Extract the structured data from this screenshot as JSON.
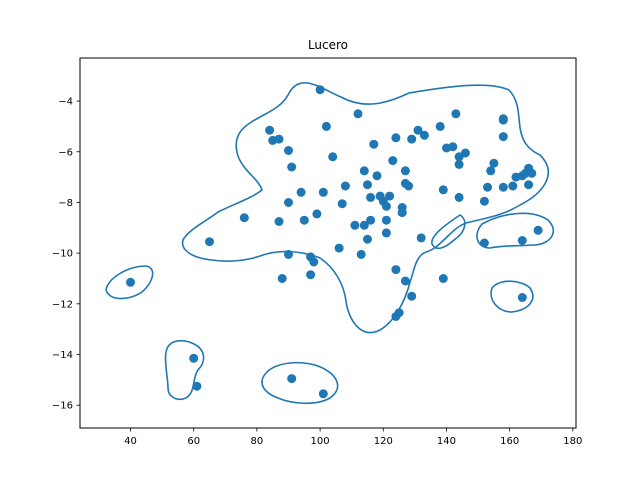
{
  "chart_data": {
    "type": "scatter",
    "title": "Lucero",
    "xlabel": "",
    "ylabel": "",
    "xlim": [
      24,
      181
    ],
    "ylim": [
      -16.9,
      -2.3
    ],
    "xticks": [
      40,
      60,
      80,
      100,
      120,
      140,
      160,
      180
    ],
    "yticks": [
      -16,
      -14,
      -12,
      -10,
      -8,
      -6,
      -4
    ],
    "grid": false,
    "colors": {
      "points": "#1f77b4",
      "contour": "#1f77b4"
    },
    "points": [
      [
        40,
        -11.15
      ],
      [
        60,
        -14.15
      ],
      [
        61,
        -15.25
      ],
      [
        65,
        -9.55
      ],
      [
        76,
        -8.6
      ],
      [
        84,
        -5.15
      ],
      [
        85,
        -5.55
      ],
      [
        87,
        -5.5
      ],
      [
        87,
        -8.75
      ],
      [
        88,
        -11.0
      ],
      [
        90,
        -5.95
      ],
      [
        90,
        -8.0
      ],
      [
        90,
        -10.05
      ],
      [
        91,
        -6.6
      ],
      [
        91,
        -14.95
      ],
      [
        94,
        -7.6
      ],
      [
        95,
        -8.7
      ],
      [
        97,
        -10.15
      ],
      [
        97,
        -10.85
      ],
      [
        98,
        -10.35
      ],
      [
        99,
        -8.45
      ],
      [
        100,
        -3.55
      ],
      [
        101,
        -15.55
      ],
      [
        101,
        -7.6
      ],
      [
        102,
        -5.0
      ],
      [
        104,
        -6.2
      ],
      [
        106,
        -9.8
      ],
      [
        107,
        -8.05
      ],
      [
        108,
        -7.35
      ],
      [
        111,
        -8.9
      ],
      [
        112,
        -4.5
      ],
      [
        113,
        -10.05
      ],
      [
        114,
        -6.75
      ],
      [
        114,
        -8.9
      ],
      [
        115,
        -7.3
      ],
      [
        115,
        -9.45
      ],
      [
        116,
        -8.7
      ],
      [
        116,
        -7.8
      ],
      [
        117,
        -5.7
      ],
      [
        118,
        -6.95
      ],
      [
        119,
        -7.75
      ],
      [
        120,
        -7.95
      ],
      [
        121,
        -8.15
      ],
      [
        121,
        -8.7
      ],
      [
        121,
        -9.2
      ],
      [
        122,
        -7.75
      ],
      [
        123,
        -6.35
      ],
      [
        124,
        -10.65
      ],
      [
        124,
        -12.5
      ],
      [
        124,
        -5.45
      ],
      [
        125,
        -12.35
      ],
      [
        126,
        -8.2
      ],
      [
        126,
        -8.4
      ],
      [
        127,
        -6.75
      ],
      [
        127,
        -11.1
      ],
      [
        127,
        -7.25
      ],
      [
        128,
        -7.35
      ],
      [
        129,
        -11.7
      ],
      [
        129,
        -5.5
      ],
      [
        131,
        -5.15
      ],
      [
        132,
        -9.4
      ],
      [
        133,
        -5.35
      ],
      [
        138,
        -5.0
      ],
      [
        139,
        -11.0
      ],
      [
        139,
        -7.5
      ],
      [
        140,
        -5.85
      ],
      [
        142,
        -5.8
      ],
      [
        143,
        -4.5
      ],
      [
        144,
        -6.2
      ],
      [
        144,
        -6.5
      ],
      [
        144,
        -7.8
      ],
      [
        146,
        -6.05
      ],
      [
        152,
        -7.95
      ],
      [
        152,
        -9.6
      ],
      [
        153,
        -7.4
      ],
      [
        154,
        -6.75
      ],
      [
        155,
        -6.45
      ],
      [
        158,
        -4.75
      ],
      [
        158,
        -4.7
      ],
      [
        158,
        -5.4
      ],
      [
        158,
        -7.4
      ],
      [
        161,
        -7.35
      ],
      [
        162,
        -7.0
      ],
      [
        164,
        -6.95
      ],
      [
        164,
        -9.5
      ],
      [
        164,
        -11.75
      ],
      [
        165,
        -6.85
      ],
      [
        166,
        -6.65
      ],
      [
        166,
        -7.3
      ],
      [
        167,
        -6.85
      ],
      [
        169,
        -9.1
      ]
    ]
  }
}
